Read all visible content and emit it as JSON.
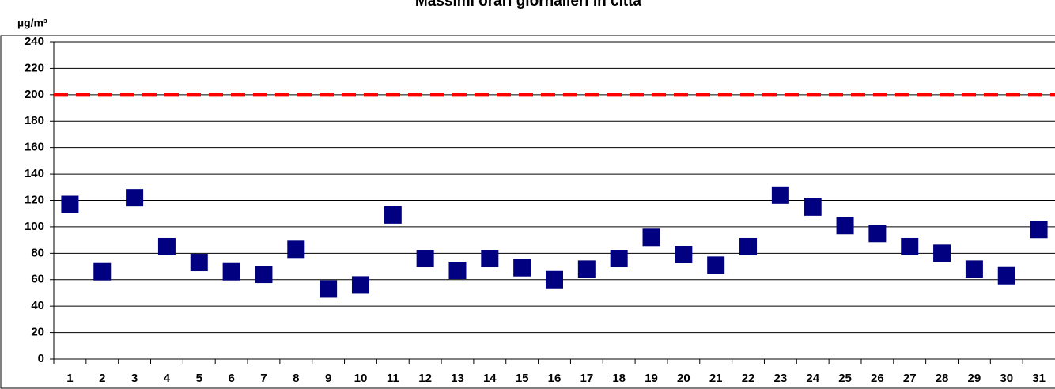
{
  "chart_data": {
    "type": "scatter",
    "title": "Massimi orari giornalieri in città",
    "y_label": "µg/m³",
    "categories": [
      "1",
      "2",
      "3",
      "4",
      "5",
      "6",
      "7",
      "8",
      "9",
      "10",
      "11",
      "12",
      "13",
      "14",
      "15",
      "16",
      "17",
      "18",
      "19",
      "20",
      "21",
      "22",
      "23",
      "24",
      "25",
      "26",
      "27",
      "28",
      "29",
      "30",
      "31"
    ],
    "values": [
      117,
      66,
      122,
      85,
      73,
      66,
      64,
      83,
      53,
      56,
      109,
      76,
      67,
      76,
      69,
      60,
      68,
      76,
      92,
      79,
      71,
      85,
      124,
      115,
      101,
      95,
      85,
      80,
      68,
      63,
      98
    ],
    "color": "#000080",
    "limit": 200,
    "limit_color": "#ff0000",
    "ylim": [
      0,
      240
    ],
    "yticks": [
      0,
      20,
      40,
      60,
      80,
      100,
      120,
      140,
      160,
      180,
      200,
      220,
      240
    ],
    "grid": true
  }
}
